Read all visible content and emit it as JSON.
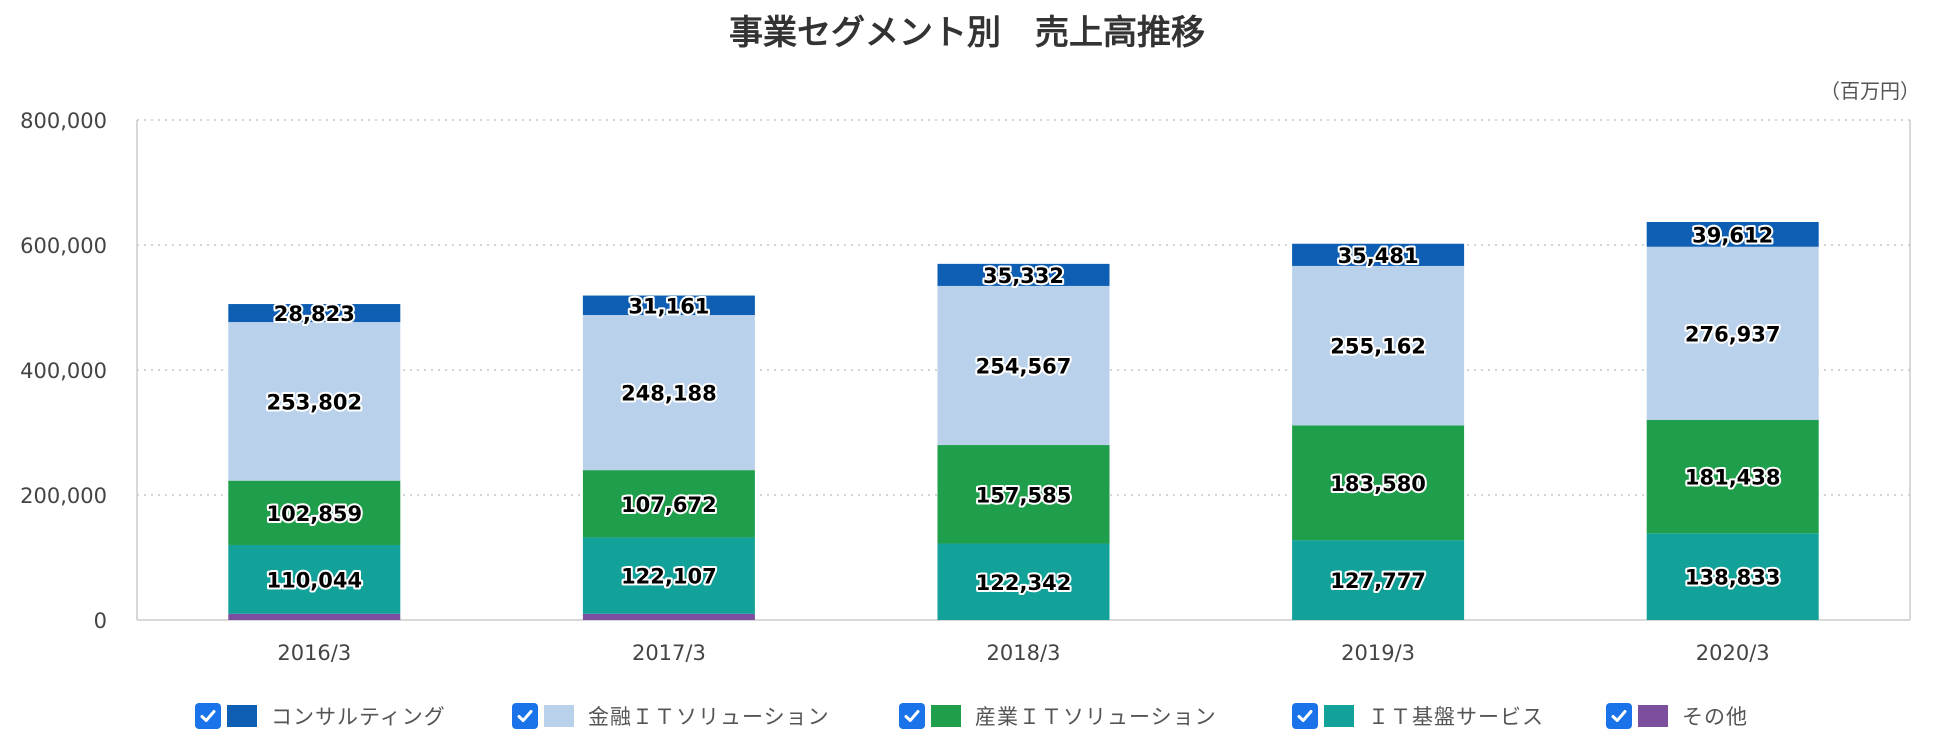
{
  "chart_data": {
    "type": "bar",
    "stacked": true,
    "title": "事業セグメント別　売上高推移",
    "unit_label": "（百万円）",
    "categories": [
      "2016/3",
      "2017/3",
      "2018/3",
      "2019/3",
      "2020/3"
    ],
    "ylim": [
      0,
      800000
    ],
    "yticks": [
      "800,000",
      "600,000",
      "400,000",
      "200,000",
      "0"
    ],
    "ytick_values": [
      800000,
      600000,
      400000,
      200000,
      0
    ],
    "grid": true,
    "legend_position": "bottom",
    "series": [
      {
        "name": "その他",
        "color": "#7b4f9e",
        "values": [
          10000,
          10000,
          0,
          0,
          0
        ],
        "labels": [
          "",
          "",
          "",
          "",
          ""
        ]
      },
      {
        "name": "ＩＴ基盤サービス",
        "color": "#12a29a",
        "values": [
          110044,
          122107,
          122342,
          127777,
          138833
        ],
        "labels": [
          "110,044",
          "122,107",
          "122,342",
          "127,777",
          "138,833"
        ]
      },
      {
        "name": "産業ＩＴソリューション",
        "color": "#1f9e4b",
        "values": [
          102859,
          107672,
          157585,
          183580,
          181438
        ],
        "labels": [
          "102,859",
          "107,672",
          "157,585",
          "183,580",
          "181,438"
        ]
      },
      {
        "name": "金融ＩＴソリューション",
        "color": "#bad1ec",
        "values": [
          253802,
          248188,
          254567,
          255162,
          276937
        ],
        "labels": [
          "253,802",
          "248,188",
          "254,567",
          "255,162",
          "276,937"
        ]
      },
      {
        "name": "コンサルティング",
        "color": "#0e5fb3",
        "values": [
          28823,
          31161,
          35332,
          35481,
          39612
        ],
        "labels": [
          "28,823",
          "31,161",
          "35,332",
          "35,481",
          "39,612"
        ]
      }
    ],
    "legend_order": [
      "コンサルティング",
      "金融ＩＴソリューション",
      "産業ＩＴソリューション",
      "ＩＴ基盤サービス",
      "その他"
    ]
  },
  "colors": {
    "checkbox": "#1a73e8",
    "grid": "#bbbbbb",
    "axis": "#cccccc"
  }
}
